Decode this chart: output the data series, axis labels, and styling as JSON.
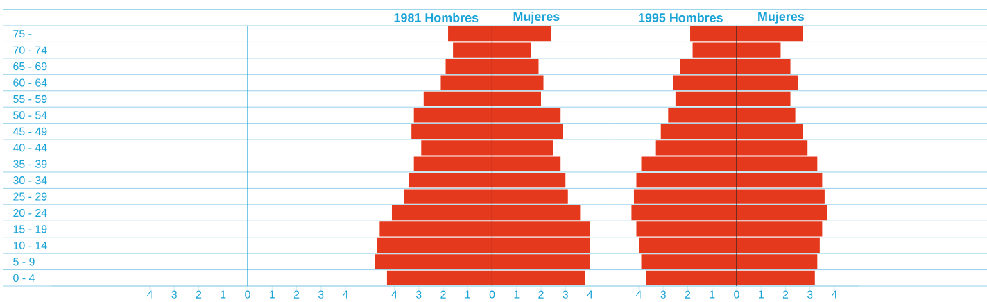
{
  "chart_data": [
    {
      "type": "bar",
      "orientation": "horizontal",
      "categories": [
        "75 -",
        "70 - 74",
        "65 - 69",
        "60 - 64",
        "55 - 59",
        "50 - 54",
        "45 - 49",
        "40 - 44",
        "35 - 39",
        "30 - 34",
        "25 - 29",
        "20 - 24",
        "15 - 19",
        "10 - 14",
        "5 - 9",
        "0 - 4"
      ],
      "values": [
        null,
        null,
        null,
        null,
        null,
        null,
        null,
        null,
        null,
        null,
        null,
        null,
        null,
        null,
        null,
        null
      ],
      "xlim": [
        8,
        0
      ],
      "xticks": [
        4,
        3,
        2,
        1
      ],
      "grid": "y"
    },
    {
      "type": "bar",
      "orientation": "horizontal",
      "categories": [
        null,
        null,
        null,
        null,
        null,
        null,
        null,
        null,
        null,
        null,
        null,
        null,
        null,
        null,
        null,
        null
      ],
      "values": [
        null,
        null,
        null,
        null,
        null,
        null,
        null,
        null,
        null,
        null,
        null,
        null,
        null,
        null,
        null,
        null
      ],
      "xlim": [
        0,
        5
      ],
      "xticks": [
        0,
        1,
        2,
        3,
        4
      ],
      "grid": "y",
      "tick_labels": "x"
    },
    {
      "type": "bar",
      "orientation": "horizontal",
      "title": "1981 Hombres",
      "categories": [
        null,
        null,
        null,
        null,
        null,
        null,
        null,
        null,
        null,
        null,
        null,
        null,
        null,
        null,
        null,
        null
      ],
      "values": [
        1.8,
        1.6,
        1.9,
        2.1,
        2.8,
        3.2,
        3.3,
        2.9,
        3.2,
        3.4,
        3.6,
        4.1,
        4.6,
        4.7,
        4.8,
        4.3
      ],
      "color": "#e5391e",
      "xlim": [
        5,
        0
      ],
      "xticks": [
        4,
        3,
        2,
        1
      ],
      "grid": "y",
      "tick_labels": "x"
    },
    {
      "type": "bar",
      "orientation": "horizontal",
      "title": "Mujeres",
      "categories": [
        null,
        null,
        null,
        null,
        null,
        null,
        null,
        null,
        null,
        null,
        null,
        null,
        null,
        null,
        null,
        null
      ],
      "values": [
        2.4,
        1.6,
        1.9,
        2.1,
        2.0,
        2.8,
        2.9,
        2.5,
        2.8,
        3.0,
        3.1,
        3.6,
        4.0,
        4.0,
        4.0,
        3.8
      ],
      "color": "#e5391e",
      "xlim": [
        0,
        5
      ],
      "xticks": [
        0,
        1,
        2,
        3,
        4
      ],
      "grid": "y",
      "tick_labels": "x"
    },
    {
      "type": "bar",
      "orientation": "horizontal",
      "title": "1995 Hombres",
      "categories": [
        null,
        null,
        null,
        null,
        null,
        null,
        null,
        null,
        null,
        null,
        null,
        null,
        null,
        null,
        null,
        null
      ],
      "values": [
        1.9,
        1.8,
        2.3,
        2.6,
        2.5,
        2.8,
        3.1,
        3.3,
        3.9,
        4.1,
        4.2,
        4.3,
        4.1,
        4.0,
        3.9,
        3.7
      ],
      "color": "#e5391e",
      "xlim": [
        5,
        0
      ],
      "xticks": [
        4,
        3,
        2,
        1
      ],
      "grid": "y",
      "tick_labels": "x"
    },
    {
      "type": "bar",
      "orientation": "horizontal",
      "title": "Mujeres",
      "categories": [
        null,
        null,
        null,
        null,
        null,
        null,
        null,
        null,
        null,
        null,
        null,
        null,
        null,
        null,
        null,
        null
      ],
      "values": [
        2.7,
        1.8,
        2.2,
        2.5,
        2.2,
        2.4,
        2.7,
        2.9,
        3.3,
        3.5,
        3.6,
        3.7,
        3.5,
        3.4,
        3.3,
        3.2
      ],
      "color": "#e5391e",
      "xlim": [
        0,
        5
      ],
      "xticks": [
        0,
        1,
        2,
        3,
        4
      ],
      "grid": "y",
      "tick_labels": "x"
    }
  ]
}
